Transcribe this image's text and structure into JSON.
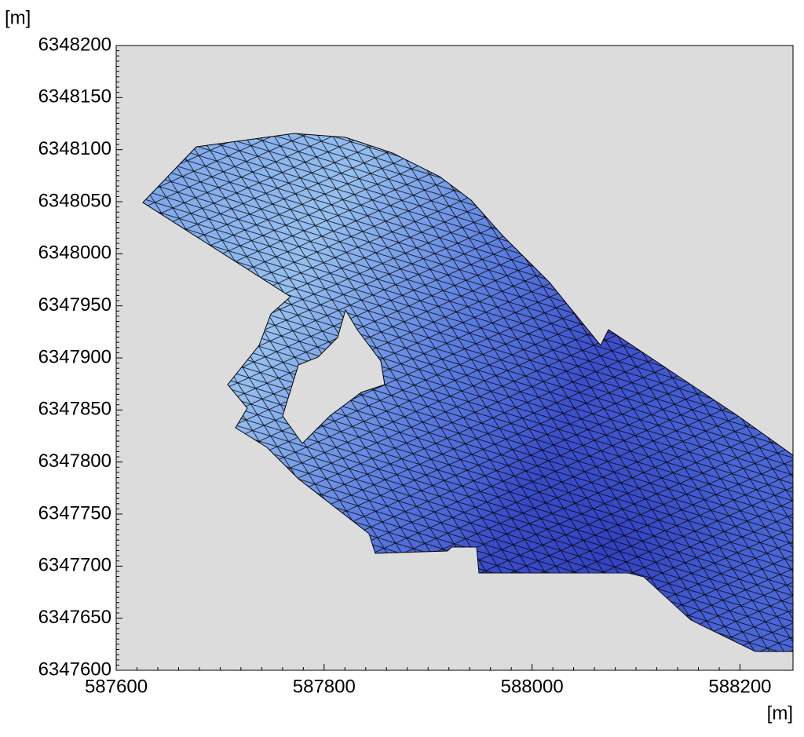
{
  "chart_data": {
    "type": "mesh",
    "y_label": "[m]",
    "x_label": "[m]",
    "xlim": [
      587600,
      588251
    ],
    "ylim": [
      6347600,
      6348200
    ],
    "xticks": [
      587600,
      587800,
      588000,
      588200
    ],
    "yticks": [
      6347600,
      6347650,
      6347700,
      6347750,
      6347800,
      6347850,
      6347900,
      6347950,
      6348000,
      6348050,
      6348100,
      6348150,
      6348200
    ]
  }
}
